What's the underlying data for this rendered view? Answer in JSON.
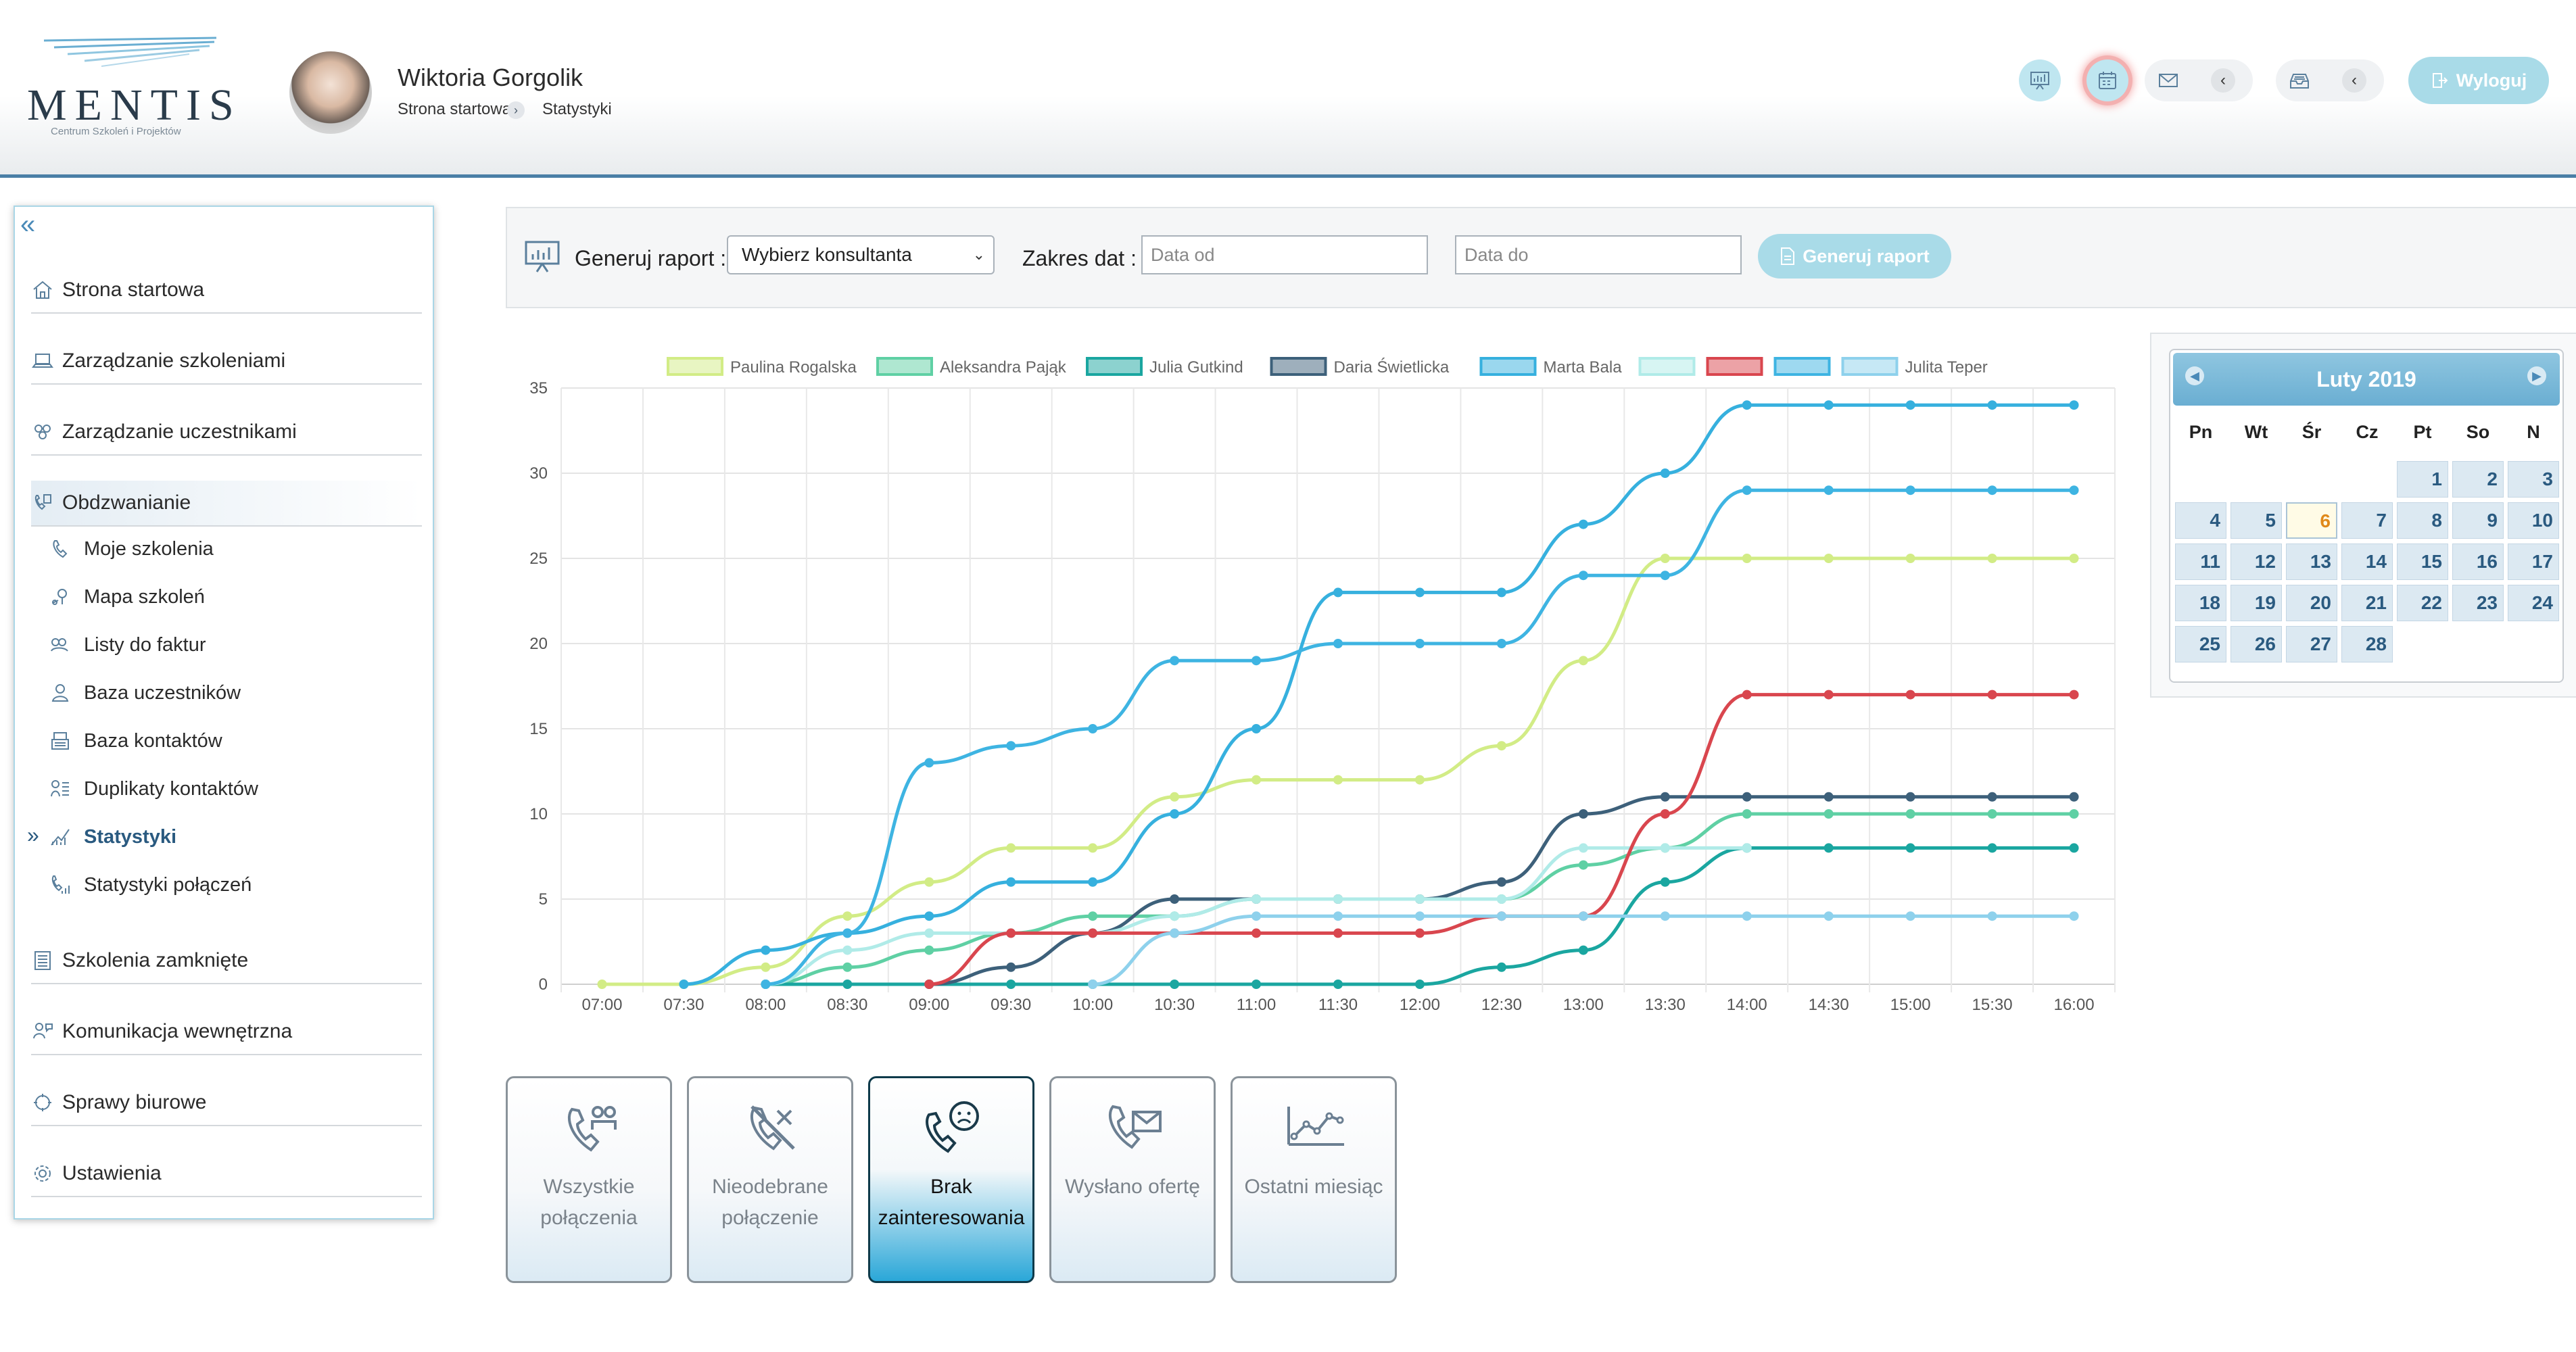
{
  "header": {
    "logo_text": "MENTIS",
    "logo_sub": "Centrum Szkoleń i Projektów",
    "user_name": "Wiktoria Gorgolik",
    "breadcrumb": [
      "Strona startowa",
      "Statystyki"
    ],
    "logout_label": "Wyloguj",
    "icons": [
      "stats-icon",
      "calendar-icon",
      "mail-icon",
      "inbox-icon"
    ]
  },
  "sidebar": {
    "main_items": [
      {
        "label": "Strona startowa",
        "icon": "home-icon"
      },
      {
        "label": "Zarządzanie szkoleniami",
        "icon": "laptop-icon"
      },
      {
        "label": "Zarządzanie uczestnikami",
        "icon": "users-icon"
      },
      {
        "label": "Obdzwanianie",
        "icon": "phone-list-icon"
      },
      {
        "label": "Szkolenia zamknięte",
        "icon": "archive-icon"
      },
      {
        "label": "Komunikacja wewnętrzna",
        "icon": "chat-icon"
      },
      {
        "label": "Sprawy biurowe",
        "icon": "office-icon"
      },
      {
        "label": "Ustawienia",
        "icon": "gear-icon"
      }
    ],
    "sub_items": [
      {
        "label": "Moje szkolenia",
        "icon": "phone-icon"
      },
      {
        "label": "Mapa szkoleń",
        "icon": "map-icon"
      },
      {
        "label": "Listy do faktur",
        "icon": "invoice-icon"
      },
      {
        "label": "Baza uczestników",
        "icon": "person-icon"
      },
      {
        "label": "Baza kontaktów",
        "icon": "contacts-icon"
      },
      {
        "label": "Duplikaty kontaktów",
        "icon": "duplicate-icon"
      },
      {
        "label": "Statystyki",
        "icon": "chart-icon"
      },
      {
        "label": "Statystyki połączeń",
        "icon": "call-stats-icon"
      }
    ]
  },
  "toolbar": {
    "report_label": "Generuj raport :",
    "consultant_select": "Wybierz konsultanta",
    "date_range_label": "Zakres dat :",
    "date_from_placeholder": "Data od",
    "date_to_placeholder": "Data do",
    "generate_label": "Generuj raport"
  },
  "calendar": {
    "month": "Luty 2019",
    "days_of_week": [
      "Pn",
      "Wt",
      "Śr",
      "Cz",
      "Pt",
      "So",
      "N"
    ],
    "start_offset": 4,
    "days": 28,
    "today": 6
  },
  "actions": [
    {
      "label_line1": "Wszystkie",
      "label_line2": "połączenia",
      "icon": "all-calls-icon",
      "active": false
    },
    {
      "label_line1": "Nieodebrane",
      "label_line2": "połączenie",
      "icon": "missed-call-icon",
      "active": false
    },
    {
      "label_line1": "Brak",
      "label_line2": "zainteresowania",
      "icon": "sad-call-icon",
      "active": true
    },
    {
      "label_line1": "Wysłano ofertę",
      "label_line2": "",
      "icon": "offer-sent-icon",
      "active": false
    },
    {
      "label_line1": "Ostatni miesiąc",
      "label_line2": "",
      "icon": "trend-icon",
      "active": false
    }
  ],
  "chart_data": {
    "type": "line",
    "x": [
      "07:00",
      "07:30",
      "08:00",
      "08:30",
      "09:00",
      "09:30",
      "10:00",
      "10:30",
      "11:00",
      "11:30",
      "12:00",
      "12:30",
      "13:00",
      "13:30",
      "14:00",
      "14:30",
      "15:00",
      "15:30",
      "16:00"
    ],
    "ylim": [
      0,
      35
    ],
    "yticks": [
      0,
      5,
      10,
      15,
      20,
      25,
      30,
      35
    ],
    "grid": true,
    "legend_position": "top",
    "series": [
      {
        "name": "Paulina Rogalska",
        "color": "#d2ec86",
        "values": [
          0,
          0,
          1,
          4,
          6,
          8,
          8,
          11,
          12,
          12,
          12,
          14,
          19,
          25,
          25,
          25,
          25,
          25,
          25
        ]
      },
      {
        "name": "Aleksandra Pająk",
        "color": "#5fd0a4",
        "values": [
          null,
          null,
          0,
          1,
          2,
          3,
          4,
          4,
          5,
          5,
          5,
          5,
          7,
          8,
          10,
          10,
          10,
          10,
          10
        ]
      },
      {
        "name": "Julia Gutkind",
        "color": "#1aa6a0",
        "values": [
          null,
          null,
          0,
          0,
          0,
          0,
          0,
          0,
          0,
          0,
          0,
          1,
          2,
          6,
          8,
          8,
          8,
          8,
          8
        ]
      },
      {
        "name": "Daria Świetlicka",
        "color": "#3d607a",
        "values": [
          null,
          null,
          null,
          null,
          0,
          1,
          3,
          5,
          5,
          5,
          5,
          6,
          10,
          11,
          11,
          11,
          11,
          11,
          11
        ]
      },
      {
        "name": "Marta Bala",
        "color": "#36b0de",
        "values": [
          null,
          0,
          2,
          3,
          4,
          6,
          6,
          10,
          15,
          23,
          23,
          23,
          27,
          30,
          34,
          34,
          34,
          34,
          34
        ]
      },
      {
        "name": "",
        "color": "#b0ebe8",
        "values": [
          null,
          null,
          0,
          2,
          3,
          3,
          3,
          4,
          5,
          5,
          5,
          5,
          8,
          8,
          8,
          null,
          null,
          null,
          null
        ]
      },
      {
        "name": "",
        "color": "#d9464e",
        "values": [
          null,
          null,
          null,
          null,
          0,
          3,
          3,
          3,
          3,
          3,
          3,
          4,
          4,
          10,
          17,
          17,
          17,
          17,
          17
        ]
      },
      {
        "name": "",
        "color": "#3eb4e2",
        "values": [
          null,
          null,
          0,
          3,
          13,
          14,
          15,
          19,
          19,
          20,
          20,
          20,
          24,
          24,
          29,
          29,
          29,
          29,
          29
        ]
      },
      {
        "name": "Julita Teper",
        "color": "#8ed1ec",
        "values": [
          null,
          null,
          null,
          null,
          null,
          null,
          0,
          3,
          4,
          4,
          4,
          4,
          4,
          4,
          4,
          4,
          4,
          4,
          4
        ]
      }
    ]
  }
}
